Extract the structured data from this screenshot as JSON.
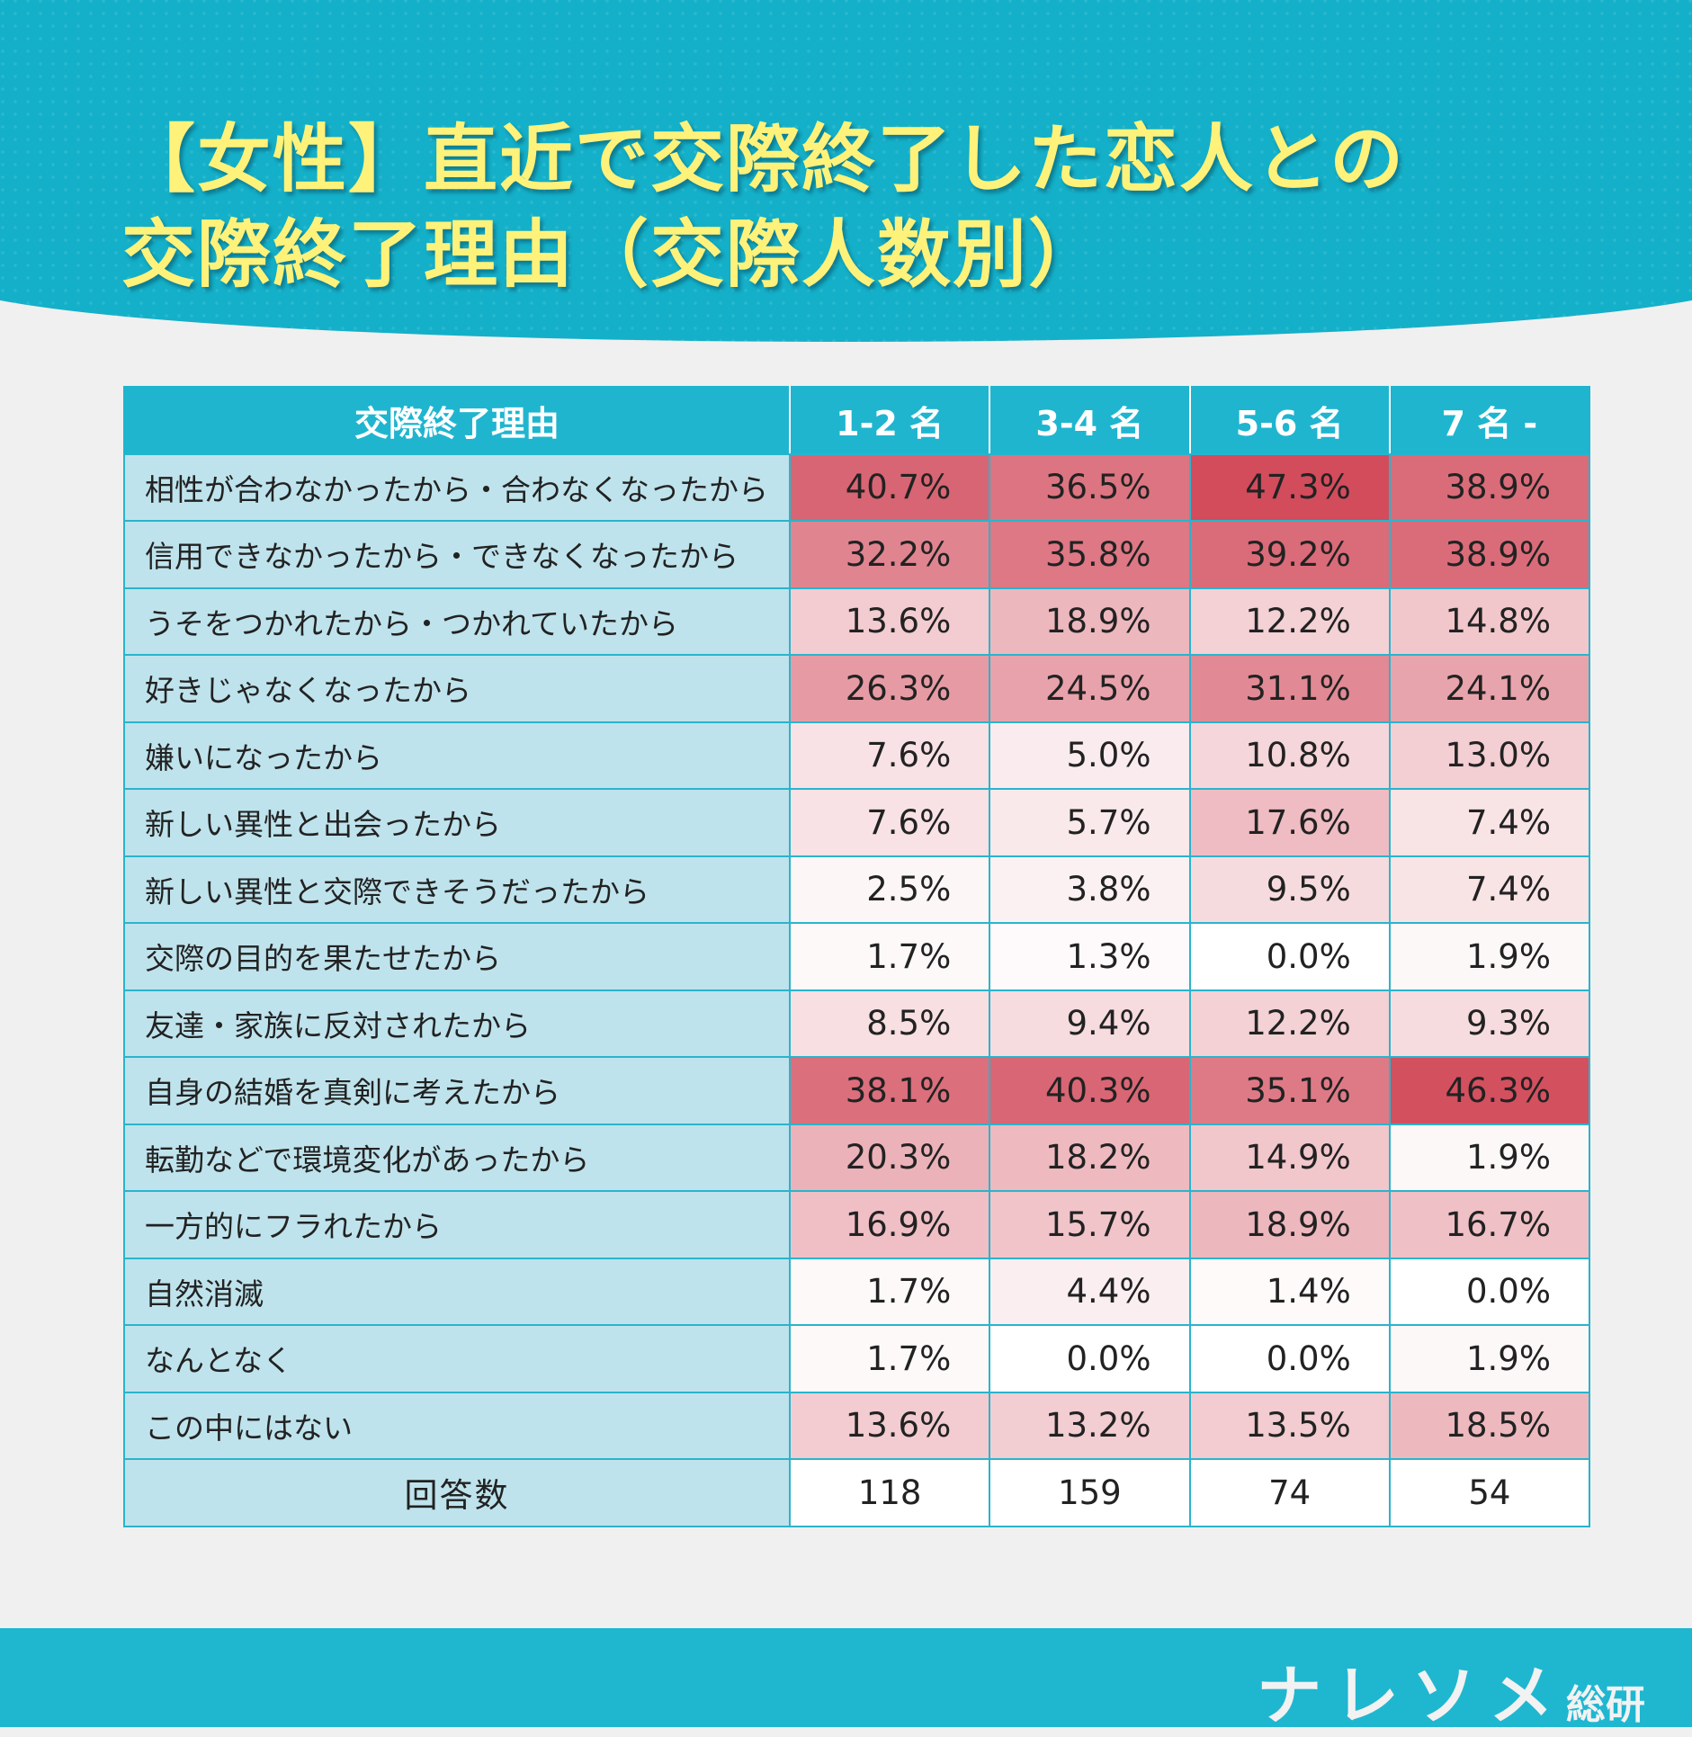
{
  "title": {
    "line1": "【女性】直近で交際終了した恋人との",
    "line2": "交際終了理由（交際人数別）"
  },
  "colors": {
    "header": "#1fb5cf",
    "label_bg": "#bfe3ec",
    "heat_min": "#ffffff",
    "heat_max": "#d24c5c",
    "title": "#fff27a"
  },
  "table": {
    "headers": [
      "交際終了理由",
      "1-2 名",
      "3-4 名",
      "5-6 名",
      "7 名 -"
    ],
    "rows": [
      {
        "reason": "相性が合わなかったから・合わなくなったから",
        "values": [
          "40.7%",
          "36.5%",
          "47.3%",
          "38.9%"
        ]
      },
      {
        "reason": "信用できなかったから・できなくなったから",
        "values": [
          "32.2%",
          "35.8%",
          "39.2%",
          "38.9%"
        ]
      },
      {
        "reason": "うそをつかれたから・つかれていたから",
        "values": [
          "13.6%",
          "18.9%",
          "12.2%",
          "14.8%"
        ]
      },
      {
        "reason": "好きじゃなくなったから",
        "values": [
          "26.3%",
          "24.5%",
          "31.1%",
          "24.1%"
        ]
      },
      {
        "reason": "嫌いになったから",
        "values": [
          "7.6%",
          "5.0%",
          "10.8%",
          "13.0%"
        ]
      },
      {
        "reason": "新しい異性と出会ったから",
        "values": [
          "7.6%",
          "5.7%",
          "17.6%",
          "7.4%"
        ]
      },
      {
        "reason": "新しい異性と交際できそうだったから",
        "values": [
          "2.5%",
          "3.8%",
          "9.5%",
          "7.4%"
        ]
      },
      {
        "reason": "交際の目的を果たせたから",
        "values": [
          "1.7%",
          "1.3%",
          "0.0%",
          "1.9%"
        ]
      },
      {
        "reason": "友達・家族に反対されたから",
        "values": [
          "8.5%",
          "9.4%",
          "12.2%",
          "9.3%"
        ]
      },
      {
        "reason": "自身の結婚を真剣に考えたから",
        "values": [
          "38.1%",
          "40.3%",
          "35.1%",
          "46.3%"
        ]
      },
      {
        "reason": "転勤などで環境変化があったから",
        "values": [
          "20.3%",
          "18.2%",
          "14.9%",
          "1.9%"
        ]
      },
      {
        "reason": "一方的にフラれたから",
        "values": [
          "16.9%",
          "15.7%",
          "18.9%",
          "16.7%"
        ]
      },
      {
        "reason": "自然消滅",
        "values": [
          "1.7%",
          "4.4%",
          "1.4%",
          "0.0%"
        ]
      },
      {
        "reason": "なんとなく",
        "values": [
          "1.7%",
          "0.0%",
          "0.0%",
          "1.9%"
        ]
      },
      {
        "reason": "この中にはない",
        "values": [
          "13.6%",
          "13.2%",
          "13.5%",
          "18.5%"
        ]
      }
    ],
    "count_label": "回答数",
    "counts": [
      "118",
      "159",
      "74",
      "54"
    ]
  },
  "footer": {
    "logo_main": "ナレソメ",
    "logo_sub": "総研"
  }
}
